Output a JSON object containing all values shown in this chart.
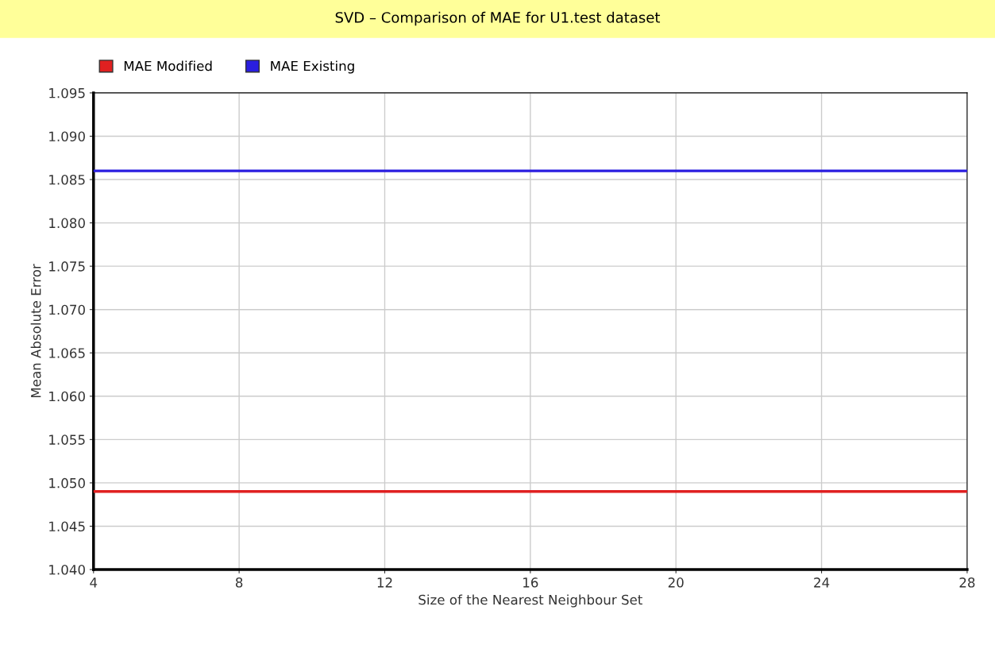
{
  "chart_data": {
    "type": "line",
    "title": "SVD – Comparison of MAE for U1.test dataset",
    "xlabel": "Size of the Nearest Neighbour Set",
    "ylabel": "Mean Absolute Error",
    "x": [
      4,
      28
    ],
    "series": [
      {
        "name": "MAE Modified",
        "color": "#e02020",
        "values": [
          1.049,
          1.049
        ]
      },
      {
        "name": "MAE Existing",
        "color": "#2a1ee0",
        "values": [
          1.086,
          1.086
        ]
      }
    ],
    "xlim": [
      4,
      28
    ],
    "xticks": [
      4,
      8,
      12,
      16,
      20,
      24,
      28
    ],
    "ylim": [
      1.04,
      1.095
    ],
    "yticks": [
      {
        "value": 1.04,
        "label": "1.040"
      },
      {
        "value": 1.045,
        "label": "1.045"
      },
      {
        "value": 1.05,
        "label": "1.050"
      },
      {
        "value": 1.055,
        "label": "1.055"
      },
      {
        "value": 1.06,
        "label": "1.060"
      },
      {
        "value": 1.065,
        "label": "1.065"
      },
      {
        "value": 1.07,
        "label": "1.070"
      },
      {
        "value": 1.075,
        "label": "1.075"
      },
      {
        "value": 1.08,
        "label": "1.080"
      },
      {
        "value": 1.085,
        "label": "1.085"
      },
      {
        "value": 1.09,
        "label": "1.090"
      },
      {
        "value": 1.095,
        "label": "1.095"
      }
    ],
    "grid": true,
    "legend": "top left",
    "marker": "none",
    "line_style": "solid"
  }
}
